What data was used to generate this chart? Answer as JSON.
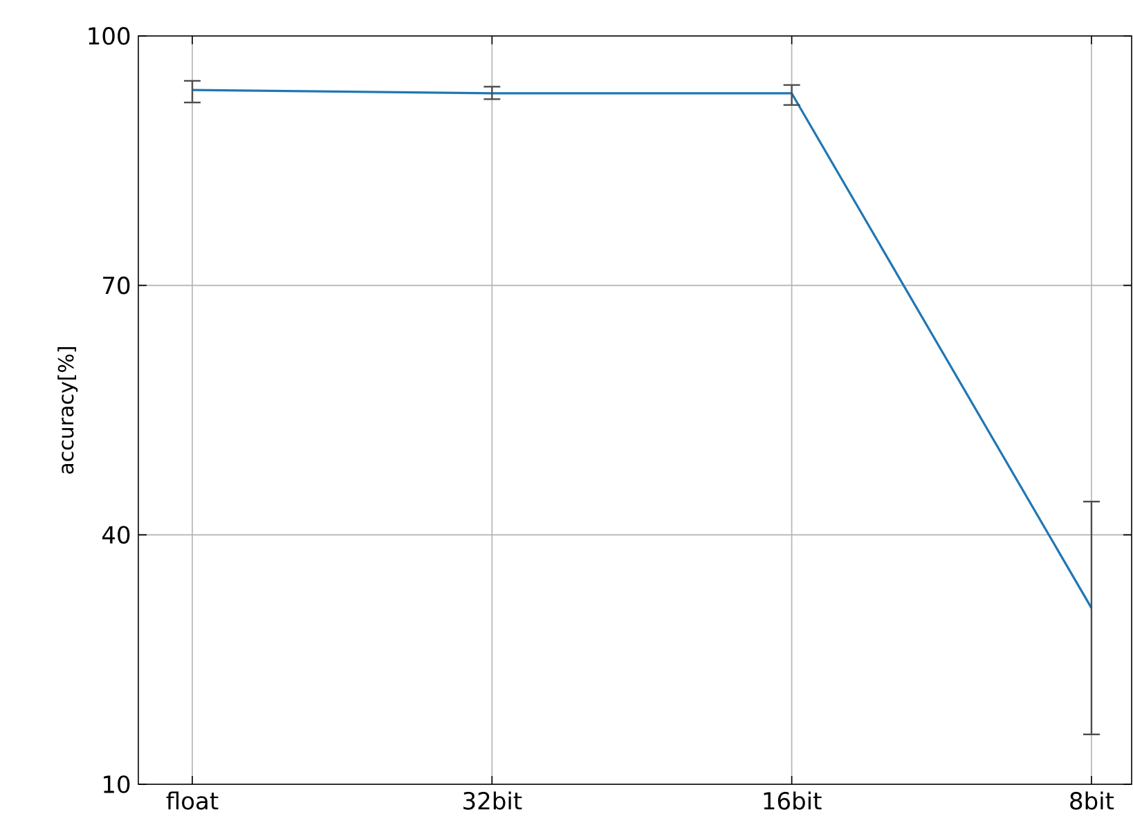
{
  "chart_data": {
    "type": "line",
    "ylabel": "accuracy[%]",
    "categories": [
      "float",
      "32bit",
      "16bit",
      "8bit"
    ],
    "values": [
      93.5,
      93.1,
      93.1,
      31.2
    ],
    "errors": [
      [
        92.0,
        94.6
      ],
      [
        92.4,
        93.9
      ],
      [
        91.7,
        94.1
      ],
      [
        16.0,
        44.0
      ]
    ],
    "color": "#1f77b4",
    "ylim": [
      10,
      100
    ],
    "yticks": [
      10,
      40,
      70,
      100
    ],
    "grid": true,
    "marker": "none",
    "line_style": "solid"
  }
}
